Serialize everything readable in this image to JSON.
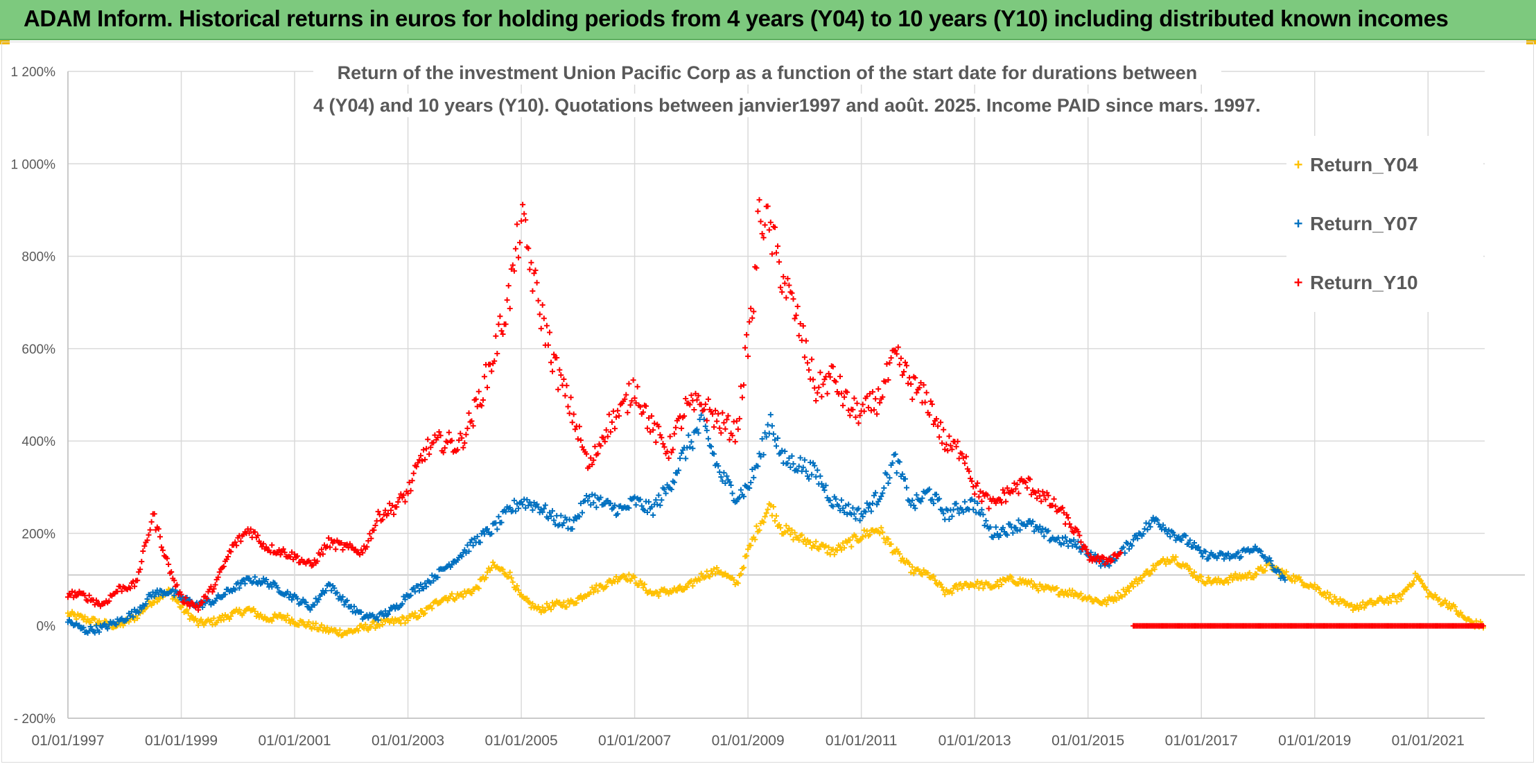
{
  "banner": {
    "title": "ADAM Inform. Historical returns in euros for holding periods from 4 years (Y04) to 10 years (Y10) including distributed known incomes"
  },
  "colors": {
    "banner_bg": "#7dc97e",
    "Return_Y04": "#ffc000",
    "Return_Y07": "#0070c0",
    "Return_Y10": "#ff0000",
    "grid": "#d9d9d9",
    "text": "#595959"
  },
  "chart_data": {
    "type": "scatter",
    "title_line1": "Return of the investment Union Pacific Corp as a function of the start date for durations between",
    "title_line2": "4 (Y04) and 10 years (Y10). Quotations between janvier1997 and août. 2025. Income PAID since mars. 1997.",
    "marker": "+",
    "ylim": [
      -200,
      1200
    ],
    "yticks": [
      -200,
      0,
      200,
      400,
      600,
      800,
      1000,
      1200
    ],
    "ytick_labels": [
      "- 200%",
      "0%",
      "200%",
      "400%",
      "600%",
      "800%",
      "1 000%",
      "1 200%"
    ],
    "xlim": [
      1997.0,
      2022.0
    ],
    "xticks": [
      1997,
      1999,
      2001,
      2003,
      2005,
      2007,
      2009,
      2011,
      2013,
      2015,
      2017,
      2019,
      2021
    ],
    "xtick_labels": [
      "01/01/1997",
      "01/01/1999",
      "01/01/2001",
      "01/01/2003",
      "01/01/2005",
      "01/01/2007",
      "01/01/2009",
      "01/01/2011",
      "01/01/2013",
      "01/01/2015",
      "01/01/2017",
      "01/01/2019",
      "01/01/2021"
    ],
    "grid": true,
    "legend_position": "right",
    "series": [
      {
        "name": "Return_Y04",
        "color": "#ffc000",
        "x": [
          1997.0,
          1997.3,
          1997.6,
          1997.9,
          1998.2,
          1998.5,
          1998.8,
          1999.0,
          1999.3,
          1999.6,
          1999.9,
          2000.2,
          2000.5,
          2000.8,
          2001.0,
          2001.3,
          2001.6,
          2001.9,
          2002.2,
          2002.5,
          2002.8,
          2003.0,
          2003.3,
          2003.6,
          2003.9,
          2004.2,
          2004.5,
          2004.8,
          2005.0,
          2005.3,
          2005.6,
          2005.9,
          2006.2,
          2006.5,
          2006.8,
          2007.0,
          2007.3,
          2007.6,
          2007.9,
          2008.2,
          2008.5,
          2008.8,
          2009.0,
          2009.2,
          2009.4,
          2009.6,
          2009.9,
          2010.2,
          2010.5,
          2010.8,
          2011.0,
          2011.3,
          2011.6,
          2011.9,
          2012.2,
          2012.5,
          2012.8,
          2013.0,
          2013.3,
          2013.6,
          2013.9,
          2014.2,
          2014.5,
          2014.8,
          2015.0,
          2015.3,
          2015.6,
          2015.9,
          2016.2,
          2016.5,
          2016.8,
          2017.0,
          2017.3,
          2017.6,
          2017.9,
          2018.2,
          2018.5,
          2018.8,
          2019.0,
          2019.3,
          2019.6,
          2019.9,
          2020.2,
          2020.5,
          2020.8,
          2021.0,
          2021.2,
          2021.4,
          2021.6,
          2021.8,
          2022.0
        ],
        "values": [
          25,
          15,
          5,
          0,
          20,
          55,
          75,
          40,
          5,
          10,
          25,
          35,
          15,
          20,
          10,
          0,
          -10,
          -15,
          -5,
          5,
          10,
          15,
          30,
          60,
          65,
          80,
          130,
          110,
          60,
          35,
          45,
          50,
          75,
          90,
          110,
          100,
          70,
          75,
          80,
          110,
          120,
          90,
          160,
          220,
          260,
          210,
          190,
          175,
          160,
          180,
          195,
          210,
          160,
          120,
          110,
          70,
          90,
          90,
          85,
          100,
          95,
          80,
          75,
          70,
          60,
          50,
          70,
          100,
          130,
          150,
          120,
          100,
          95,
          105,
          110,
          130,
          110,
          95,
          85,
          60,
          40,
          45,
          55,
          60,
          110,
          70,
          55,
          45,
          20,
          5,
          0
        ]
      },
      {
        "name": "Return_Y07",
        "color": "#0070c0",
        "x": [
          1997.0,
          1997.3,
          1997.6,
          1997.9,
          1998.2,
          1998.5,
          1998.8,
          1999.0,
          1999.3,
          1999.6,
          1999.9,
          2000.2,
          2000.5,
          2000.8,
          2001.0,
          2001.3,
          2001.6,
          2001.9,
          2002.2,
          2002.5,
          2002.8,
          2003.0,
          2003.3,
          2003.6,
          2003.9,
          2004.2,
          2004.5,
          2004.8,
          2005.0,
          2005.3,
          2005.6,
          2005.9,
          2006.2,
          2006.5,
          2006.8,
          2007.0,
          2007.3,
          2007.6,
          2007.9,
          2008.2,
          2008.5,
          2008.8,
          2009.0,
          2009.2,
          2009.4,
          2009.6,
          2009.9,
          2010.2,
          2010.5,
          2010.8,
          2011.0,
          2011.3,
          2011.6,
          2011.9,
          2012.2,
          2012.5,
          2012.8,
          2013.0,
          2013.3,
          2013.6,
          2013.9,
          2014.2,
          2014.5,
          2014.8,
          2015.0,
          2015.3,
          2015.6,
          2015.9,
          2016.2,
          2016.5,
          2016.8,
          2017.0,
          2017.3,
          2017.6,
          2017.9,
          2018.2,
          2018.5
        ],
        "values": [
          10,
          -10,
          -5,
          10,
          30,
          70,
          75,
          60,
          45,
          55,
          80,
          100,
          95,
          75,
          60,
          40,
          90,
          50,
          20,
          20,
          40,
          70,
          90,
          120,
          150,
          185,
          210,
          250,
          270,
          260,
          230,
          220,
          280,
          260,
          250,
          270,
          250,
          300,
          380,
          440,
          330,
          280,
          300,
          360,
          450,
          360,
          350,
          330,
          270,
          250,
          240,
          280,
          360,
          260,
          290,
          240,
          260,
          265,
          200,
          210,
          225,
          200,
          185,
          175,
          160,
          130,
          160,
          200,
          230,
          200,
          180,
          155,
          150,
          150,
          170,
          140,
          90
        ]
      },
      {
        "name": "Return_Y10",
        "color": "#ff0000",
        "x": [
          1997.0,
          1997.3,
          1997.6,
          1997.9,
          1998.2,
          1998.5,
          1998.8,
          1999.0,
          1999.3,
          1999.6,
          1999.9,
          2000.2,
          2000.5,
          2000.8,
          2001.0,
          2001.3,
          2001.6,
          2001.9,
          2002.2,
          2002.5,
          2002.8,
          2003.0,
          2003.3,
          2003.6,
          2003.9,
          2004.2,
          2004.5,
          2004.8,
          2005.0,
          2005.3,
          2005.6,
          2005.9,
          2006.2,
          2006.5,
          2006.8,
          2007.0,
          2007.3,
          2007.6,
          2007.9,
          2008.2,
          2008.5,
          2008.8,
          2009.0,
          2009.1,
          2009.2,
          2009.4,
          2009.6,
          2009.9,
          2010.2,
          2010.5,
          2010.8,
          2011.0,
          2011.3,
          2011.6,
          2011.9,
          2012.2,
          2012.5,
          2012.8,
          2013.0,
          2013.3,
          2013.6,
          2013.9,
          2014.2,
          2014.5,
          2014.8,
          2015.0,
          2015.3,
          2015.6
        ],
        "values": [
          70,
          65,
          45,
          80,
          90,
          240,
          120,
          60,
          40,
          90,
          170,
          210,
          170,
          160,
          150,
          130,
          180,
          170,
          160,
          240,
          260,
          290,
          380,
          400,
          390,
          470,
          580,
          720,
          880,
          700,
          560,
          460,
          340,
          430,
          470,
          520,
          430,
          380,
          470,
          480,
          440,
          420,
          620,
          700,
          900,
          850,
          760,
          650,
          510,
          540,
          470,
          460,
          490,
          580,
          520,
          480,
          390,
          380,
          300,
          260,
          290,
          310,
          280,
          250,
          200,
          150,
          140,
          160
        ]
      },
      {
        "name": "Return_Y10",
        "color": "#ff0000",
        "x": [
          2015.8,
          2016.0,
          2016.5,
          2017.0,
          2017.5,
          2018.0,
          2018.5,
          2019.0,
          2019.5,
          2020.0,
          2020.5,
          2021.0,
          2021.5,
          2022.0
        ],
        "values": [
          0,
          0,
          0,
          0,
          0,
          0,
          0,
          0,
          0,
          0,
          0,
          0,
          0,
          0
        ]
      }
    ]
  }
}
